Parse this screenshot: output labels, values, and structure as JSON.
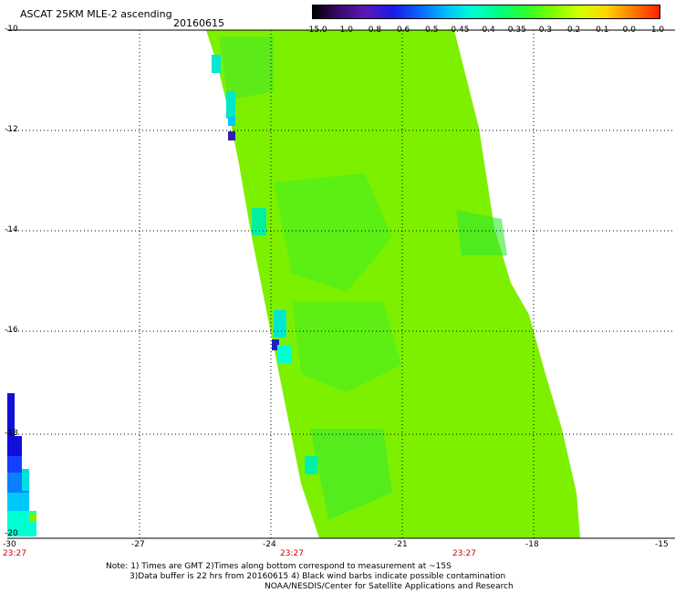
{
  "header": {
    "title": "ASCAT 25KM MLE-2 ascending",
    "date": "20160615"
  },
  "colorbar": {
    "labels": [
      "-15.0",
      "-1.0",
      "-0.8",
      "-0.6",
      "-0.5",
      "-0.45",
      "-0.4",
      "-0.35",
      "-0.3",
      "-0.2",
      "-0.1",
      "0.0",
      "1.0"
    ],
    "colors": [
      "#000000",
      "#3a0a6e",
      "#5a18b8",
      "#1a1ae6",
      "#0a64ff",
      "#00bfff",
      "#00ffd5",
      "#00ff7f",
      "#2bff2b",
      "#7dff00",
      "#d2ff00",
      "#ffd700",
      "#ff7a00",
      "#ff2000"
    ]
  },
  "axes": {
    "x_ticks": [
      "-30",
      "-27",
      "-24",
      "-21",
      "-18",
      "-15"
    ],
    "y_ticks": [
      "-10",
      "-12",
      "-14",
      "-16",
      "-18",
      "-20"
    ],
    "time_labels": [
      "23:27",
      "23:27",
      "23:27"
    ]
  },
  "footer": {
    "line1": "Note: 1) Times are GMT 2)Times along bottom correspond to measurement at ~15S",
    "line2": "3)Data buffer is 22 hrs from 20160615 4) Black wind barbs indicate possible contamination",
    "line3": "NOAA/NESDIS/Center for Satellite Applications and Research"
  }
}
